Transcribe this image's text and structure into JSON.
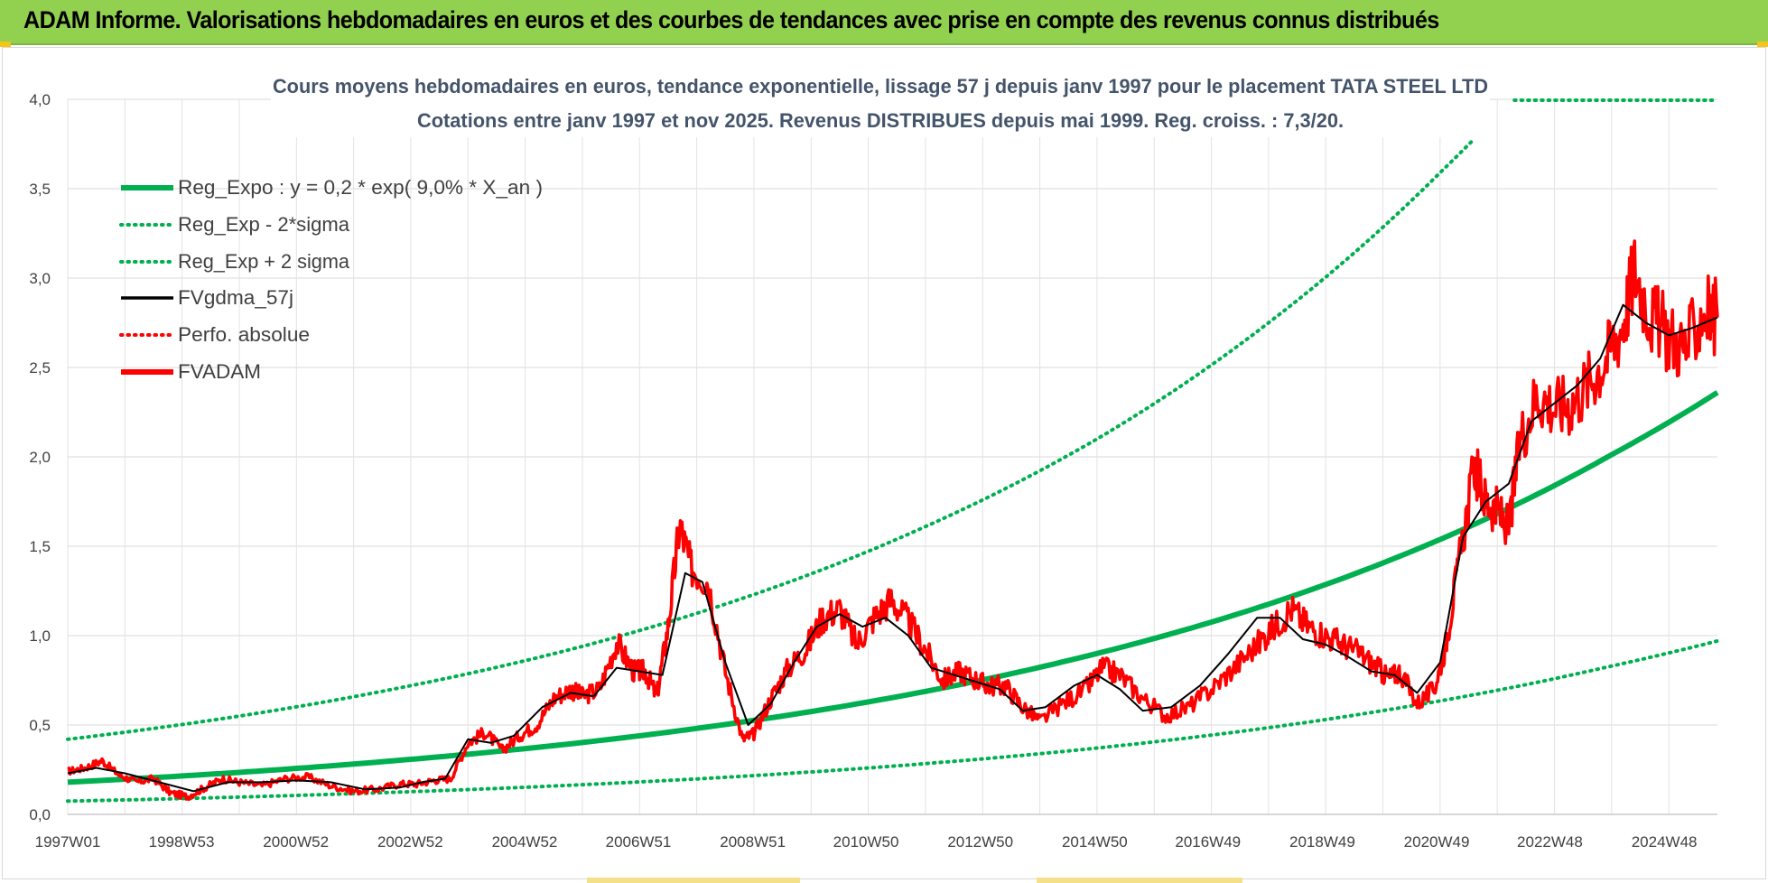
{
  "header": {
    "title": "ADAM Informe. Valorisations hebdomadaires en euros et des courbes de tendances avec prise en compte des revenus connus distribués",
    "background_color": "#92d050"
  },
  "chart_data": {
    "type": "line",
    "title_line1": "Cours moyens hebdomadaires en euros, tendance exponentielle, lissage 57 j depuis janv 1997  pour le placement TATA STEEL LTD",
    "title_line2": "Cotations entre janv 1997 et nov 2025. Revenus DISTRIBUES depuis mai 1999.  Reg. croiss. : 7,3/20.",
    "xlabel": "",
    "ylabel": "",
    "x_range": [
      1997.0,
      2025.85
    ],
    "ylim": [
      0,
      4.0
    ],
    "y_ticks": [
      "0,0",
      "0,5",
      "1,0",
      "1,5",
      "2,0",
      "2,5",
      "3,0",
      "3,5",
      "4,0"
    ],
    "x_ticks": [
      {
        "label": "1997W01",
        "x": 1997.0
      },
      {
        "label": "1998W53",
        "x": 1998.99
      },
      {
        "label": "2000W52",
        "x": 2000.99
      },
      {
        "label": "2002W52",
        "x": 2002.99
      },
      {
        "label": "2004W52",
        "x": 2004.99
      },
      {
        "label": "2006W51",
        "x": 2006.98
      },
      {
        "label": "2008W51",
        "x": 2008.98
      },
      {
        "label": "2010W50",
        "x": 2010.96
      },
      {
        "label": "2012W50",
        "x": 2012.96
      },
      {
        "label": "2014W50",
        "x": 2014.96
      },
      {
        "label": "2016W49",
        "x": 2016.94
      },
      {
        "label": "2018W49",
        "x": 2018.94
      },
      {
        "label": "2020W49",
        "x": 2020.94
      },
      {
        "label": "2022W48",
        "x": 2022.92
      },
      {
        "label": "2024W48",
        "x": 2024.92
      }
    ],
    "grid": true,
    "legend_position": "top-left",
    "legend": [
      {
        "name": "Reg_Expo : y = 0,2 * exp( 9,0% *  X_an )",
        "color": "#00b050",
        "style": "solid-thick"
      },
      {
        "name": "Reg_Exp - 2*sigma",
        "color": "#00b050",
        "style": "dotted"
      },
      {
        "name": "Reg_Exp + 2 sigma",
        "color": "#00b050",
        "style": "dotted"
      },
      {
        "name": "FVgdma_57j",
        "color": "#000000",
        "style": "solid"
      },
      {
        "name": "Perfo. absolue",
        "color": "#ff0000",
        "style": "dotted"
      },
      {
        "name": "FVADAM",
        "color": "#ff0000",
        "style": "solid-thick"
      }
    ],
    "series": [
      {
        "name": "Reg_Expo",
        "type": "exponential",
        "color": "#00b050",
        "x": [
          1997.0,
          2000.0,
          2003.0,
          2006.0,
          2009.0,
          2012.0,
          2015.0,
          2018.0,
          2021.0,
          2024.0,
          2025.85
        ],
        "values": [
          0.18,
          0.235,
          0.308,
          0.402,
          0.526,
          0.688,
          0.9,
          1.176,
          1.538,
          2.012,
          2.36
        ]
      },
      {
        "name": "Reg_Exp - 2*sigma",
        "color": "#00b050",
        "x": [
          1997.0,
          2000.0,
          2003.0,
          2006.0,
          2009.0,
          2012.0,
          2015.0,
          2018.0,
          2021.0,
          2024.0,
          2025.85
        ],
        "values": [
          0.074,
          0.097,
          0.127,
          0.166,
          0.217,
          0.284,
          0.371,
          0.485,
          0.635,
          0.83,
          0.97
        ]
      },
      {
        "name": "Reg_Exp + 2 sigma",
        "color": "#00b050",
        "x": [
          1997.0,
          2000.0,
          2003.0,
          2006.0,
          2009.0,
          2012.0,
          2015.0,
          2018.0,
          2021.0,
          2022.2,
          2025.85
        ],
        "values": [
          0.42,
          0.55,
          0.72,
          0.94,
          1.23,
          1.61,
          2.1,
          2.75,
          3.59,
          3.98,
          4.0
        ]
      },
      {
        "name": "FVADAM",
        "color": "#ff0000",
        "x": [
          1997.0,
          1997.3,
          1997.6,
          1997.9,
          1998.2,
          1998.5,
          1998.8,
          1999.1,
          1999.4,
          1999.7,
          2000.0,
          2000.4,
          2000.8,
          2001.2,
          2001.6,
          2002.0,
          2002.4,
          2002.8,
          2003.1,
          2003.4,
          2003.7,
          2004.0,
          2004.3,
          2004.6,
          2004.9,
          2005.2,
          2005.5,
          2005.8,
          2006.0,
          2006.3,
          2006.6,
          2006.9,
          2007.1,
          2007.3,
          2007.5,
          2007.7,
          2007.9,
          2008.2,
          2008.5,
          2008.8,
          2009.0,
          2009.3,
          2009.6,
          2009.9,
          2010.2,
          2010.5,
          2010.8,
          2011.1,
          2011.4,
          2011.7,
          2012.0,
          2012.3,
          2012.6,
          2012.9,
          2013.1,
          2013.4,
          2013.7,
          2014.0,
          2014.4,
          2014.8,
          2015.1,
          2015.4,
          2015.8,
          2016.2,
          2016.6,
          2017.0,
          2017.4,
          2017.8,
          2018.1,
          2018.4,
          2018.7,
          2019.0,
          2019.3,
          2019.6,
          2019.9,
          2020.1,
          2020.3,
          2020.6,
          2020.9,
          2021.1,
          2021.3,
          2021.6,
          2021.8,
          2022.0,
          2022.2,
          2022.4,
          2022.7,
          2023.0,
          2023.3,
          2023.6,
          2023.9,
          2024.2,
          2024.4,
          2024.7,
          2025.0,
          2025.3,
          2025.6,
          2025.85
        ],
        "values": [
          0.24,
          0.26,
          0.3,
          0.22,
          0.18,
          0.2,
          0.12,
          0.1,
          0.15,
          0.2,
          0.18,
          0.16,
          0.2,
          0.21,
          0.16,
          0.13,
          0.14,
          0.17,
          0.17,
          0.19,
          0.2,
          0.4,
          0.46,
          0.36,
          0.44,
          0.5,
          0.65,
          0.7,
          0.66,
          0.7,
          0.96,
          0.8,
          0.8,
          0.66,
          1.05,
          1.62,
          1.38,
          1.3,
          0.8,
          0.42,
          0.45,
          0.65,
          0.82,
          0.92,
          1.1,
          1.15,
          0.95,
          1.1,
          1.2,
          1.08,
          0.92,
          0.75,
          0.8,
          0.75,
          0.72,
          0.72,
          0.6,
          0.52,
          0.62,
          0.7,
          0.82,
          0.78,
          0.65,
          0.55,
          0.6,
          0.7,
          0.82,
          0.95,
          1.05,
          1.15,
          1.05,
          1.0,
          0.95,
          0.9,
          0.82,
          0.76,
          0.8,
          0.62,
          0.7,
          0.95,
          1.35,
          1.95,
          1.75,
          1.7,
          1.6,
          2.1,
          2.35,
          2.28,
          2.3,
          2.42,
          2.55,
          2.75,
          3.05,
          2.78,
          2.68,
          2.6,
          2.82,
          2.78
        ]
      },
      {
        "name": "FVgdma_57j",
        "color": "#000000",
        "x": [
          1997.0,
          1997.5,
          1998.0,
          1998.6,
          1999.2,
          1999.8,
          2000.4,
          2001.0,
          2001.6,
          2002.2,
          2002.8,
          2003.2,
          2003.6,
          2004.0,
          2004.4,
          2004.8,
          2005.3,
          2005.8,
          2006.2,
          2006.6,
          2007.0,
          2007.4,
          2007.8,
          2008.1,
          2008.5,
          2008.9,
          2009.3,
          2009.7,
          2010.1,
          2010.5,
          2010.9,
          2011.3,
          2011.7,
          2012.1,
          2012.5,
          2012.9,
          2013.3,
          2013.7,
          2014.1,
          2014.6,
          2015.0,
          2015.4,
          2015.8,
          2016.3,
          2016.8,
          2017.3,
          2017.8,
          2018.2,
          2018.6,
          2019.0,
          2019.4,
          2019.8,
          2020.2,
          2020.6,
          2021.0,
          2021.4,
          2021.8,
          2022.2,
          2022.6,
          2023.0,
          2023.4,
          2023.8,
          2024.2,
          2024.6,
          2025.0,
          2025.4,
          2025.85
        ],
        "values": [
          0.23,
          0.26,
          0.23,
          0.18,
          0.13,
          0.18,
          0.18,
          0.19,
          0.18,
          0.14,
          0.15,
          0.18,
          0.2,
          0.42,
          0.4,
          0.44,
          0.6,
          0.68,
          0.66,
          0.82,
          0.8,
          0.78,
          1.35,
          1.3,
          0.85,
          0.5,
          0.62,
          0.85,
          1.05,
          1.12,
          1.05,
          1.1,
          1.0,
          0.82,
          0.78,
          0.74,
          0.7,
          0.58,
          0.6,
          0.72,
          0.78,
          0.7,
          0.58,
          0.6,
          0.72,
          0.9,
          1.1,
          1.1,
          0.98,
          0.95,
          0.88,
          0.8,
          0.78,
          0.68,
          0.85,
          1.55,
          1.75,
          1.85,
          2.2,
          2.3,
          2.4,
          2.55,
          2.85,
          2.75,
          2.68,
          2.72,
          2.78
        ]
      }
    ]
  }
}
